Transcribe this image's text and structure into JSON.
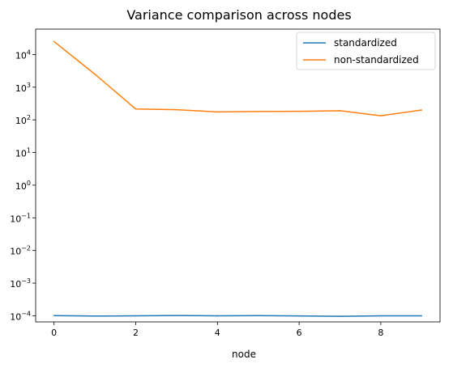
{
  "chart_data": {
    "type": "line",
    "title": "Variance comparison across nodes",
    "xlabel": "node",
    "ylabel": "",
    "x": [
      0,
      1,
      2,
      3,
      4,
      5,
      6,
      7,
      8,
      9
    ],
    "xticks": [
      0,
      2,
      4,
      6,
      8
    ],
    "xlim": [
      -0.45,
      9.45
    ],
    "yscale": "log",
    "ylim": [
      6.5e-05,
      60000
    ],
    "yticks": [
      {
        "value": 0.0001,
        "base": "10",
        "exp": "−4"
      },
      {
        "value": 0.001,
        "base": "10",
        "exp": "−3"
      },
      {
        "value": 0.01,
        "base": "10",
        "exp": "−2"
      },
      {
        "value": 0.1,
        "base": "10",
        "exp": "−1"
      },
      {
        "value": 1,
        "base": "10",
        "exp": "0"
      },
      {
        "value": 10,
        "base": "10",
        "exp": "1"
      },
      {
        "value": 100,
        "base": "10",
        "exp": "2"
      },
      {
        "value": 1000,
        "base": "10",
        "exp": "3"
      },
      {
        "value": 10000,
        "base": "10",
        "exp": "4"
      }
    ],
    "grid": false,
    "legend_position": "top-right",
    "series": [
      {
        "name": "standardized",
        "color": "#1f77b4",
        "values": [
          0.000101,
          9.8e-05,
          0.0001,
          0.000102,
          0.0001,
          0.000101,
          9.9e-05,
          9.6e-05,
          0.0001,
          0.0001
        ]
      },
      {
        "name": "non-standardized",
        "color": "#ff7f0e",
        "values": [
          25000,
          2500,
          215,
          205,
          175,
          180,
          182,
          190,
          133,
          200
        ]
      }
    ]
  }
}
